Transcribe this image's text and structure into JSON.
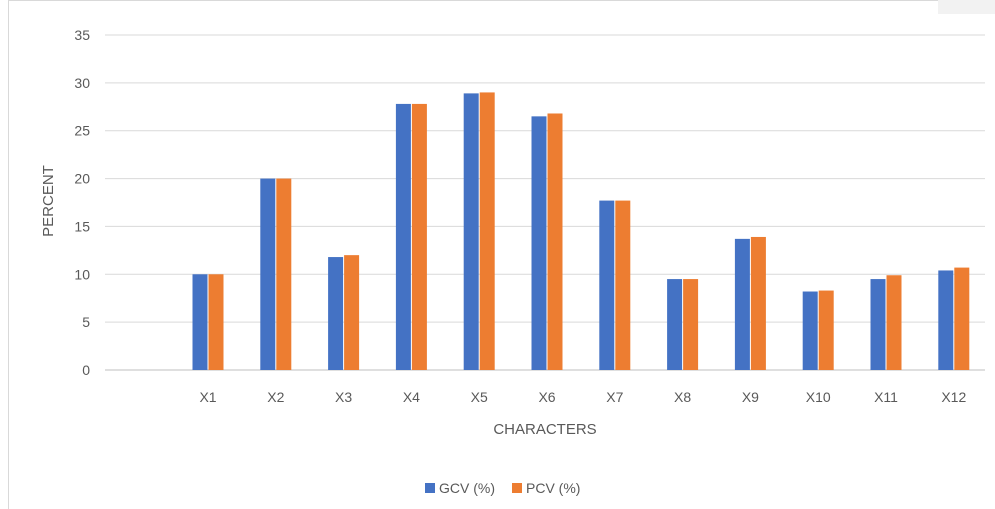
{
  "chart_data": {
    "type": "bar",
    "title": "",
    "xlabel": "CHARACTERS",
    "ylabel": "PERCENT",
    "ylim": [
      0,
      35
    ],
    "yticks": [
      0,
      5,
      10,
      15,
      20,
      25,
      30,
      35
    ],
    "grid": true,
    "legend": "bottom",
    "categories": [
      "X1",
      "X2",
      "X3",
      "X4",
      "X5",
      "X6",
      "X7",
      "X8",
      "X9",
      "X10",
      "X11",
      "X12"
    ],
    "series": [
      {
        "name": "GCV (%)",
        "color": "#4472c4",
        "values": [
          10.0,
          20.0,
          11.8,
          27.8,
          28.9,
          26.5,
          17.7,
          9.5,
          13.7,
          8.2,
          9.5,
          10.4
        ]
      },
      {
        "name": "PCV (%)",
        "color": "#ed7d31",
        "values": [
          10.0,
          20.0,
          12.0,
          27.8,
          29.0,
          26.8,
          17.7,
          9.5,
          13.9,
          8.3,
          9.9,
          10.7
        ]
      }
    ]
  }
}
